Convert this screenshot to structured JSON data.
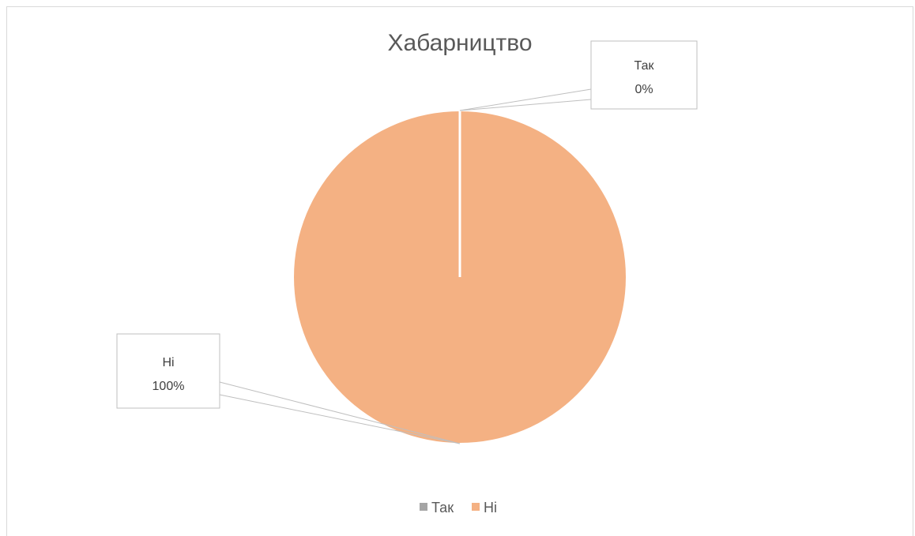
{
  "chart_data": {
    "type": "pie",
    "title": "Хабарництво",
    "categories": [
      "Так",
      "Ні"
    ],
    "values": [
      0,
      100
    ],
    "colors": [
      "#a5a5a5",
      "#f4b183"
    ],
    "data_labels": [
      {
        "category": "Так",
        "percent": "0%"
      },
      {
        "category": "Ні",
        "percent": "100%"
      }
    ],
    "legend_position": "bottom",
    "legend": [
      "Так",
      "Ні"
    ]
  }
}
